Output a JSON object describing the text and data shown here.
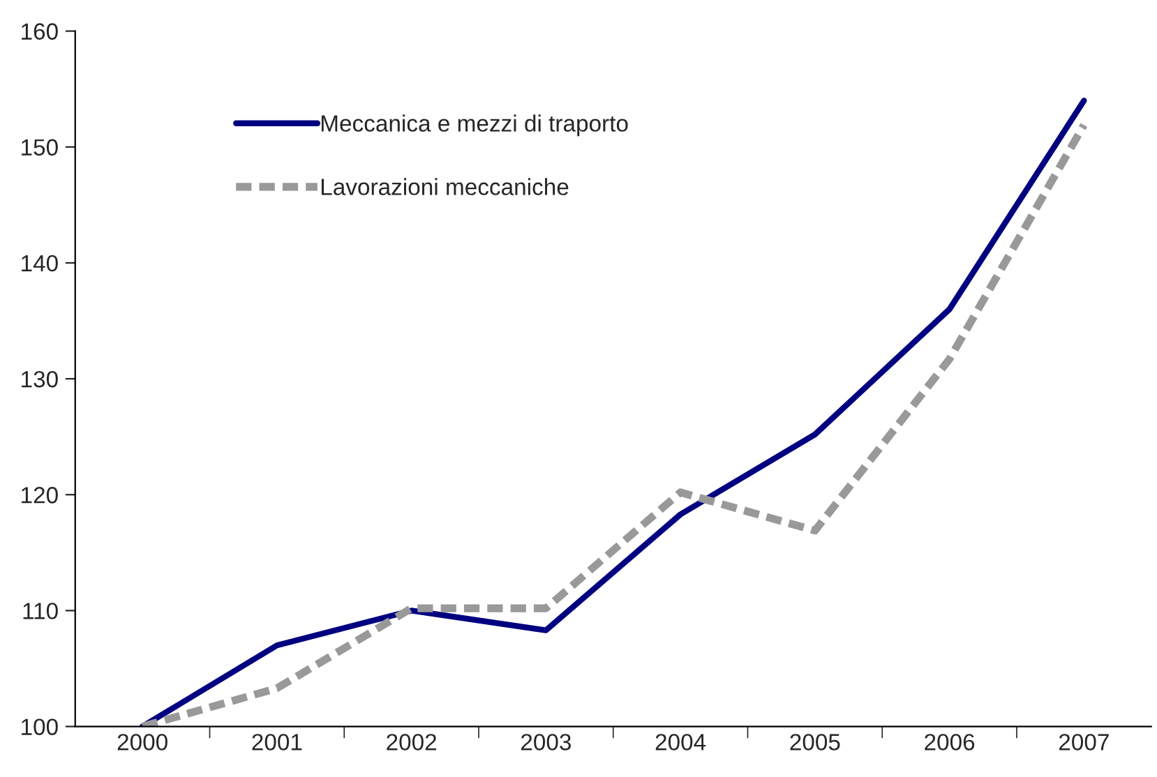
{
  "chart_data": {
    "type": "line",
    "categories": [
      "2000",
      "2001",
      "2002",
      "2003",
      "2004",
      "2005",
      "2006",
      "2007"
    ],
    "series": [
      {
        "name": "Meccanica e mezzi di traporto",
        "color": "#000080",
        "line_style": "solid",
        "values": [
          100,
          107,
          110,
          108.3,
          118.3,
          125.2,
          136,
          154
        ]
      },
      {
        "name": "Lavorazioni meccaniche",
        "color": "#999999",
        "line_style": "dashed",
        "values": [
          100,
          103.3,
          110.2,
          110.2,
          120.2,
          116.9,
          131.7,
          151.9
        ]
      }
    ],
    "ylim": [
      100,
      160
    ],
    "yticks": [
      100,
      110,
      120,
      130,
      140,
      150,
      160
    ],
    "grid": false,
    "legend": "top left",
    "marker": "none"
  }
}
